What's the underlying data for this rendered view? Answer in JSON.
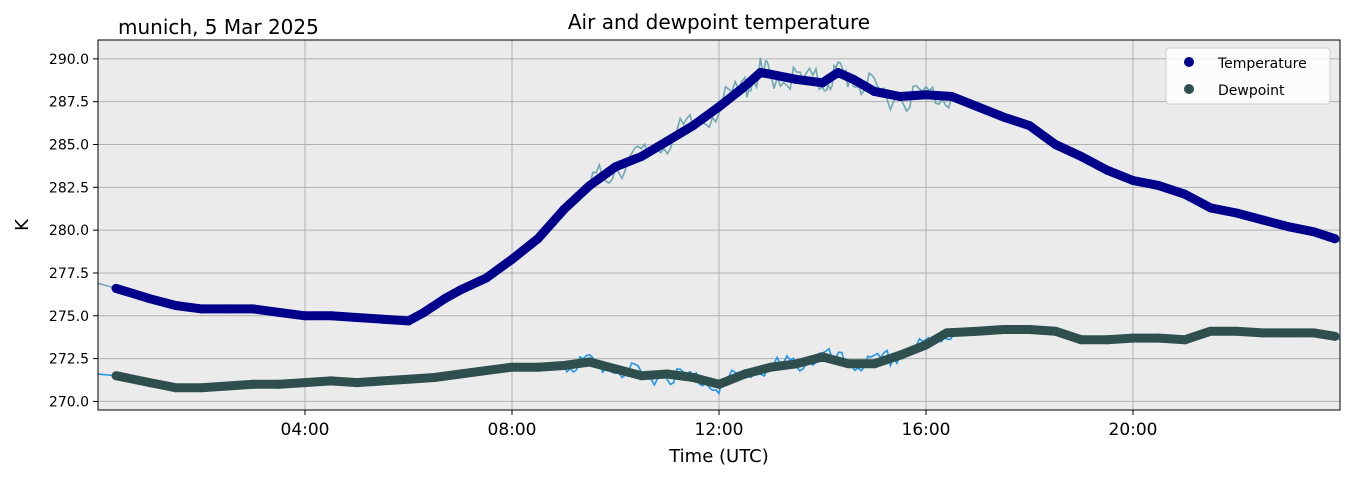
{
  "chart_data": {
    "type": "line",
    "title": "Air and dewpoint temperature",
    "location_date": "munich, 5 Mar 2025",
    "xlabel": "Time (UTC)",
    "ylabel": "K",
    "xlim": [
      0,
      24
    ],
    "ylim": [
      269.5,
      291.1
    ],
    "grid": true,
    "legend_position": "top-right",
    "x_ticks": [
      4,
      8,
      12,
      16,
      20
    ],
    "x_tick_labels": [
      "04:00",
      "08:00",
      "12:00",
      "16:00",
      "20:00"
    ],
    "y_ticks": [
      270.0,
      272.5,
      275.0,
      277.5,
      280.0,
      282.5,
      285.0,
      287.5,
      290.0
    ],
    "y_tick_labels": [
      "270.0",
      "272.5",
      "275.0",
      "277.5",
      "280.0",
      "282.5",
      "285.0",
      "287.5",
      "290.0"
    ],
    "series": [
      {
        "name": "Temperature",
        "color": "#00008b",
        "raw_color": "#6fa8b0",
        "x": [
          0.35,
          1.0,
          1.5,
          2.0,
          2.5,
          3.0,
          3.5,
          4.0,
          4.5,
          5.0,
          5.5,
          6.0,
          6.3,
          6.7,
          7.0,
          7.5,
          8.0,
          8.5,
          9.0,
          9.5,
          10.0,
          10.5,
          11.0,
          11.5,
          12.0,
          12.5,
          12.8,
          13.0,
          13.5,
          14.0,
          14.3,
          14.6,
          15.0,
          15.5,
          16.0,
          16.5,
          17.0,
          17.5,
          18.0,
          18.5,
          19.0,
          19.5,
          20.0,
          20.5,
          21.0,
          21.5,
          22.0,
          22.5,
          23.0,
          23.5,
          23.9
        ],
        "values": [
          276.6,
          276.0,
          275.6,
          275.4,
          275.4,
          275.4,
          275.2,
          275.0,
          275.0,
          274.9,
          274.8,
          274.7,
          275.2,
          276.0,
          276.5,
          277.2,
          278.3,
          279.5,
          281.2,
          282.6,
          283.7,
          284.3,
          285.2,
          286.1,
          287.2,
          288.4,
          289.2,
          289.1,
          288.8,
          288.6,
          289.2,
          288.8,
          288.1,
          287.8,
          287.9,
          287.8,
          287.2,
          286.6,
          286.1,
          285.0,
          284.3,
          283.5,
          282.9,
          282.6,
          282.1,
          281.3,
          281.0,
          280.6,
          280.2,
          279.9,
          279.5
        ]
      },
      {
        "name": "Dewpoint",
        "color": "#2f4f4f",
        "raw_color": "#2196e8",
        "x": [
          0.35,
          1.0,
          1.5,
          2.0,
          2.5,
          3.0,
          3.5,
          4.0,
          4.5,
          5.0,
          5.5,
          6.0,
          6.5,
          7.0,
          7.5,
          8.0,
          8.5,
          9.0,
          9.5,
          10.0,
          10.5,
          11.0,
          11.5,
          12.0,
          12.5,
          13.0,
          13.5,
          14.0,
          14.5,
          15.0,
          15.5,
          16.0,
          16.4,
          17.0,
          17.5,
          18.0,
          18.5,
          19.0,
          19.5,
          20.0,
          20.5,
          21.0,
          21.5,
          22.0,
          22.5,
          23.0,
          23.5,
          23.9
        ],
        "values": [
          271.5,
          271.1,
          270.8,
          270.8,
          270.9,
          271.0,
          271.0,
          271.1,
          271.2,
          271.1,
          271.2,
          271.3,
          271.4,
          271.6,
          271.8,
          272.0,
          272.0,
          272.1,
          272.3,
          271.9,
          271.5,
          271.6,
          271.4,
          271.0,
          271.6,
          272.0,
          272.2,
          272.6,
          272.2,
          272.2,
          272.7,
          273.3,
          274.0,
          274.1,
          274.2,
          274.2,
          274.1,
          273.6,
          273.6,
          273.7,
          273.7,
          273.6,
          274.1,
          274.1,
          274.0,
          274.0,
          274.0,
          273.8
        ]
      }
    ]
  }
}
